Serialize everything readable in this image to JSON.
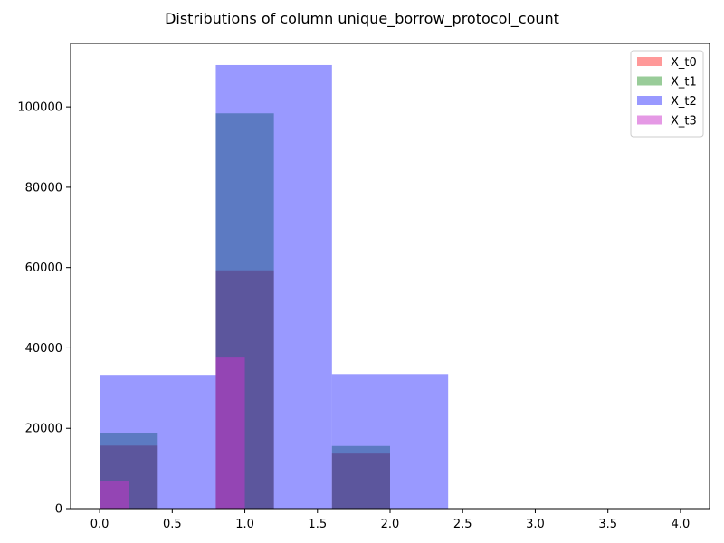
{
  "chart_data": {
    "type": "bar",
    "title": "Distributions of column unique_borrow_protocol_count",
    "xlabel": "",
    "ylabel": "",
    "xlim": [
      -0.2,
      4.2
    ],
    "ylim": [
      0,
      115800
    ],
    "x_ticks": [
      0.0,
      0.5,
      1.0,
      1.5,
      2.0,
      2.5,
      3.0,
      3.5,
      4.0
    ],
    "x_tick_labels": [
      "0.0",
      "0.5",
      "1.0",
      "1.5",
      "2.0",
      "2.5",
      "3.0",
      "3.5",
      "4.0"
    ],
    "y_ticks": [
      0,
      20000,
      40000,
      60000,
      80000,
      100000
    ],
    "y_tick_labels": [
      "0",
      "20000",
      "40000",
      "60000",
      "80000",
      "100000"
    ],
    "grid": false,
    "legend_position": "top-right",
    "series": [
      {
        "name": "X_t0",
        "color": "#ff0000",
        "alpha": 0.4,
        "bins": [
          {
            "x0": 0.0,
            "x1": 0.4,
            "count": 15700
          },
          {
            "x0": 0.8,
            "x1": 1.2,
            "count": 59300
          },
          {
            "x0": 1.6,
            "x1": 2.0,
            "count": 13700
          }
        ]
      },
      {
        "name": "X_t1",
        "color": "#008000",
        "alpha": 0.4,
        "bins": [
          {
            "x0": 0.0,
            "x1": 0.4,
            "count": 18800
          },
          {
            "x0": 0.8,
            "x1": 1.2,
            "count": 98400
          },
          {
            "x0": 1.6,
            "x1": 2.0,
            "count": 15600
          }
        ]
      },
      {
        "name": "X_t2",
        "color": "#0000ff",
        "alpha": 0.4,
        "bins": [
          {
            "x0": 0.0,
            "x1": 0.8,
            "count": 33300
          },
          {
            "x0": 0.8,
            "x1": 1.6,
            "count": 110400
          },
          {
            "x0": 1.6,
            "x1": 2.4,
            "count": 33500
          }
        ]
      },
      {
        "name": "X_t3",
        "color": "#cc33cc",
        "alpha": 0.5,
        "bins": [
          {
            "x0": 0.0,
            "x1": 0.2,
            "count": 6900
          },
          {
            "x0": 0.8,
            "x1": 1.0,
            "count": 37600
          }
        ]
      }
    ]
  }
}
